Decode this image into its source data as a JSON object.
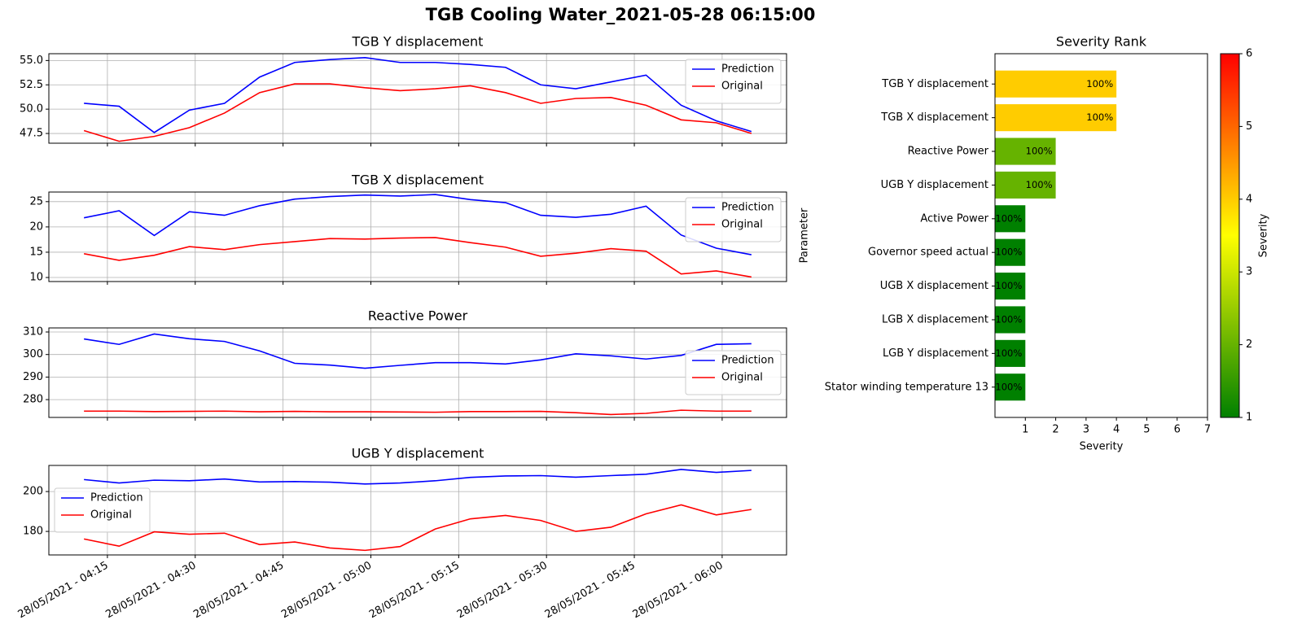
{
  "title": "TGB Cooling Water_2021-05-28 06:15:00",
  "chart_data": [
    {
      "type": "line",
      "title": "TGB Y displacement",
      "x": [
        "28/05/2021 - 04:11",
        "28/05/2021 - 04:17",
        "28/05/2021 - 04:23",
        "28/05/2021 - 04:29",
        "28/05/2021 - 04:35",
        "28/05/2021 - 04:41",
        "28/05/2021 - 04:47",
        "28/05/2021 - 04:53",
        "28/05/2021 - 04:59",
        "28/05/2021 - 05:05",
        "28/05/2021 - 05:11",
        "28/05/2021 - 05:17",
        "28/05/2021 - 05:23",
        "28/05/2021 - 05:29",
        "28/05/2021 - 05:35",
        "28/05/2021 - 05:41",
        "28/05/2021 - 05:47",
        "28/05/2021 - 05:53",
        "28/05/2021 - 05:59",
        "28/05/2021 - 06:05"
      ],
      "series": [
        {
          "name": "Prediction",
          "color": "#0000ff",
          "values": [
            50.6,
            50.3,
            47.6,
            49.9,
            50.6,
            53.3,
            54.8,
            55.1,
            55.3,
            54.8,
            54.8,
            54.6,
            54.3,
            52.5,
            52.1,
            52.8,
            53.5,
            50.4,
            48.8,
            47.7
          ]
        },
        {
          "name": "Original",
          "color": "#ff0000",
          "values": [
            47.8,
            46.7,
            47.2,
            48.1,
            49.6,
            51.7,
            52.6,
            52.6,
            52.2,
            51.9,
            52.1,
            52.4,
            51.7,
            50.6,
            51.1,
            51.2,
            50.4,
            48.9,
            48.6,
            47.5
          ]
        }
      ],
      "xlim": [
        "28/05/2021 - 04:05",
        "28/05/2021 - 06:11"
      ],
      "ylim": [
        46.5,
        55.7
      ],
      "yticks": [
        47.5,
        {
          "value": 50,
          "label": "50.0"
        },
        52.5,
        {
          "value": 55,
          "label": "55.0"
        }
      ],
      "grid": true,
      "legend": "upper right"
    },
    {
      "type": "line",
      "title": "TGB X displacement",
      "x": [
        "28/05/2021 - 04:11",
        "28/05/2021 - 04:17",
        "28/05/2021 - 04:23",
        "28/05/2021 - 04:29",
        "28/05/2021 - 04:35",
        "28/05/2021 - 04:41",
        "28/05/2021 - 04:47",
        "28/05/2021 - 04:53",
        "28/05/2021 - 04:59",
        "28/05/2021 - 05:05",
        "28/05/2021 - 05:11",
        "28/05/2021 - 05:17",
        "28/05/2021 - 05:23",
        "28/05/2021 - 05:29",
        "28/05/2021 - 05:35",
        "28/05/2021 - 05:41",
        "28/05/2021 - 05:47",
        "28/05/2021 - 05:53",
        "28/05/2021 - 05:59",
        "28/05/2021 - 06:05"
      ],
      "series": [
        {
          "name": "Prediction",
          "color": "#0000ff",
          "values": [
            21.8,
            23.2,
            18.3,
            23.0,
            22.3,
            24.2,
            25.5,
            26.0,
            26.3,
            26.1,
            26.4,
            25.4,
            24.8,
            22.3,
            21.9,
            22.5,
            24.1,
            18.4,
            15.8,
            14.5
          ]
        },
        {
          "name": "Original",
          "color": "#ff0000",
          "values": [
            14.7,
            13.4,
            14.4,
            16.1,
            15.5,
            16.5,
            17.1,
            17.7,
            17.6,
            17.8,
            17.9,
            16.9,
            16.0,
            14.2,
            14.8,
            15.7,
            15.2,
            10.7,
            11.3,
            10.1
          ]
        }
      ],
      "xlim": [
        "28/05/2021 - 04:05",
        "28/05/2021 - 06:11"
      ],
      "ylim": [
        9.2,
        26.9
      ],
      "yticks": [
        10,
        15,
        20,
        25
      ],
      "grid": true,
      "legend": "upper right"
    },
    {
      "type": "line",
      "title": "Reactive Power",
      "x": [
        "28/05/2021 - 04:11",
        "28/05/2021 - 04:17",
        "28/05/2021 - 04:23",
        "28/05/2021 - 04:29",
        "28/05/2021 - 04:35",
        "28/05/2021 - 04:41",
        "28/05/2021 - 04:47",
        "28/05/2021 - 04:53",
        "28/05/2021 - 04:59",
        "28/05/2021 - 05:05",
        "28/05/2021 - 05:11",
        "28/05/2021 - 05:17",
        "28/05/2021 - 05:23",
        "28/05/2021 - 05:29",
        "28/05/2021 - 05:35",
        "28/05/2021 - 05:41",
        "28/05/2021 - 05:47",
        "28/05/2021 - 05:53",
        "28/05/2021 - 05:59",
        "28/05/2021 - 06:05"
      ],
      "series": [
        {
          "name": "Prediction",
          "color": "#0000ff",
          "values": [
            306.9,
            304.5,
            309.1,
            307.0,
            305.8,
            301.6,
            296.1,
            295.3,
            293.9,
            295.2,
            296.4,
            296.4,
            295.8,
            297.6,
            300.3,
            299.4,
            298.0,
            299.6,
            304.5,
            304.8
          ]
        },
        {
          "name": "Original",
          "color": "#ff0000",
          "values": [
            274.9,
            274.9,
            274.7,
            274.8,
            274.9,
            274.6,
            274.8,
            274.6,
            274.6,
            274.5,
            274.4,
            274.7,
            274.7,
            274.8,
            274.2,
            273.4,
            273.9,
            275.3,
            274.9,
            274.9
          ]
        }
      ],
      "xlim": [
        "28/05/2021 - 04:05",
        "28/05/2021 - 06:11"
      ],
      "ylim": [
        272.1,
        311.8
      ],
      "yticks": [
        280,
        290,
        300,
        310
      ],
      "grid": true,
      "legend": "center right"
    },
    {
      "type": "line",
      "title": "UGB Y displacement",
      "x": [
        "28/05/2021 - 04:11",
        "28/05/2021 - 04:17",
        "28/05/2021 - 04:23",
        "28/05/2021 - 04:29",
        "28/05/2021 - 04:35",
        "28/05/2021 - 04:41",
        "28/05/2021 - 04:47",
        "28/05/2021 - 04:53",
        "28/05/2021 - 04:59",
        "28/05/2021 - 05:05",
        "28/05/2021 - 05:11",
        "28/05/2021 - 05:17",
        "28/05/2021 - 05:23",
        "28/05/2021 - 05:29",
        "28/05/2021 - 05:35",
        "28/05/2021 - 05:41",
        "28/05/2021 - 05:47",
        "28/05/2021 - 05:53",
        "28/05/2021 - 05:59",
        "28/05/2021 - 06:05"
      ],
      "series": [
        {
          "name": "Prediction",
          "color": "#0000ff",
          "values": [
            206.0,
            204.3,
            205.7,
            205.4,
            206.3,
            204.8,
            205.0,
            204.7,
            203.8,
            204.3,
            205.4,
            207.1,
            207.8,
            208.0,
            207.2,
            208.0,
            208.7,
            211.1,
            209.6,
            210.6
          ]
        },
        {
          "name": "Original",
          "color": "#ff0000",
          "values": [
            176.2,
            172.6,
            179.8,
            178.6,
            179.1,
            173.4,
            174.7,
            171.7,
            170.5,
            172.4,
            181.2,
            186.3,
            188.0,
            185.5,
            180.0,
            182.1,
            188.8,
            193.3,
            188.3,
            191.0
          ]
        }
      ],
      "xlim": [
        "28/05/2021 - 04:05",
        "28/05/2021 - 06:11"
      ],
      "xticks": [
        "28/05/2021 - 04:15",
        "28/05/2021 - 04:30",
        "28/05/2021 - 04:45",
        "28/05/2021 - 05:00",
        "28/05/2021 - 05:15",
        "28/05/2021 - 05:30",
        "28/05/2021 - 05:45",
        "28/05/2021 - 06:00"
      ],
      "ylim": [
        168.2,
        213.1
      ],
      "yticks": [
        180,
        200
      ],
      "grid": true,
      "legend": "center left"
    },
    {
      "type": "barh",
      "title": "Severity Rank",
      "categories": [
        "TGB Y displacement",
        "TGB X displacement",
        "Reactive Power",
        "UGB Y displacement",
        "Active Power",
        "Governor speed actual",
        "UGB X displacement",
        "LGB X displacement",
        "LGB Y displacement",
        "Stator winding temperature 13"
      ],
      "values": [
        4,
        4,
        2,
        2,
        1,
        1,
        1,
        1,
        1,
        1
      ],
      "annotations": [
        "100%",
        "100%",
        "100%",
        "100%",
        "100%",
        "100%",
        "100%",
        "100%",
        "100%",
        "100%"
      ],
      "xlim": [
        0,
        7
      ],
      "xticks": [
        1,
        2,
        3,
        4,
        5,
        6,
        7
      ],
      "xlabel": "Severity",
      "ylabel": "Parameter",
      "colormap": [
        "#008000",
        "#ffff00",
        "#ff0000"
      ],
      "clim": [
        1,
        6
      ],
      "colorbar": {
        "label": "Severity",
        "ticks": [
          1,
          2,
          3,
          4,
          5,
          6
        ]
      }
    }
  ]
}
